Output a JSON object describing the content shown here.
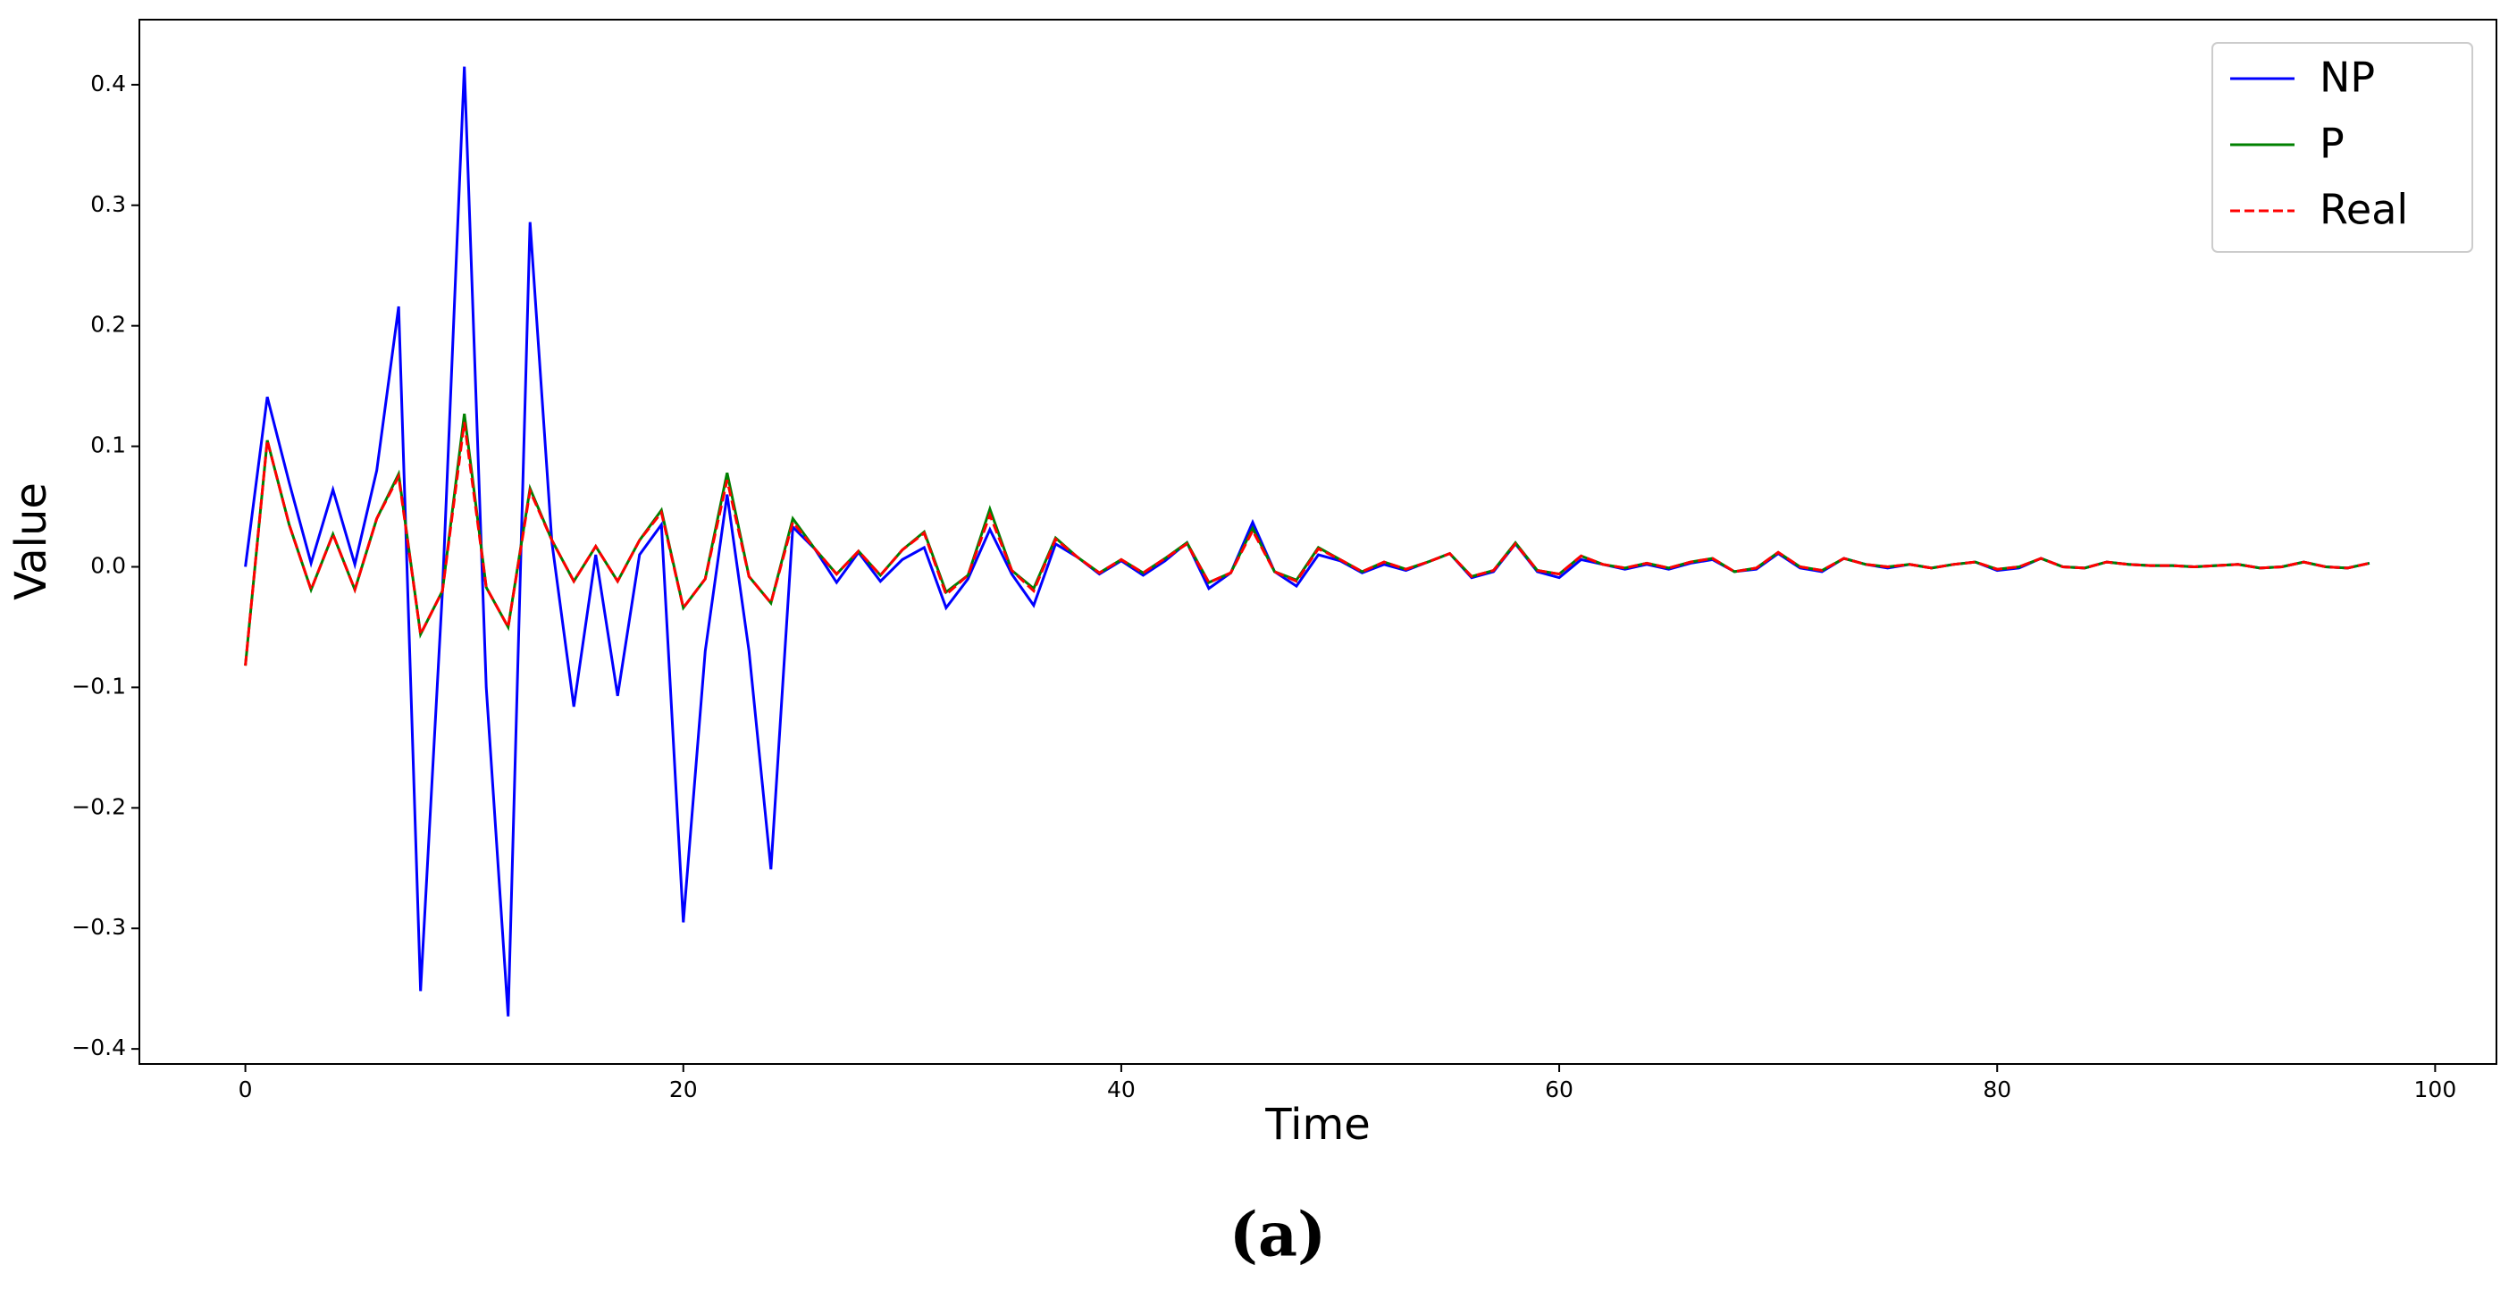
{
  "chart_data": {
    "type": "line",
    "xlabel": "Time",
    "ylabel": "Value",
    "caption": "(a)",
    "legend": "upper right",
    "xlim": [
      -4.84,
      102.8
    ],
    "ylim": [
      -0.4125,
      0.454
    ],
    "xticks": [
      0,
      20,
      40,
      60,
      80,
      100
    ],
    "yticks": [
      {
        "value": -0.4,
        "label": "−0.4"
      },
      {
        "value": -0.3,
        "label": "−0.3"
      },
      {
        "value": -0.2,
        "label": "−0.2"
      },
      {
        "value": -0.1,
        "label": "−0.1"
      },
      {
        "value": 0,
        "label": "0.0"
      },
      0.1,
      0.2,
      0.3,
      0.4
    ],
    "x": [
      0,
      1,
      2,
      3,
      4,
      5,
      6,
      7,
      8,
      9,
      10,
      11,
      12,
      13,
      14,
      15,
      16,
      17,
      18,
      19,
      20,
      21,
      22,
      23,
      24,
      25,
      26,
      27,
      28,
      29,
      30,
      31,
      32,
      33,
      34,
      35,
      36,
      37,
      38,
      39,
      40,
      41,
      42,
      43,
      44,
      45,
      46,
      47,
      48,
      49,
      50,
      51,
      52,
      53,
      54,
      55,
      56,
      57,
      58,
      59,
      60,
      61,
      62,
      63,
      64,
      65,
      66,
      67,
      68,
      69,
      70,
      71,
      72,
      73,
      74,
      75,
      76,
      77,
      78,
      79,
      80,
      81,
      82,
      83,
      84,
      85,
      86,
      87,
      88,
      89,
      90,
      91,
      92,
      93,
      94,
      95,
      96,
      97
    ],
    "series": [
      {
        "name": "NP",
        "color": "#0000ff",
        "linestyle": "solid",
        "values": [
          0.0,
          0.141,
          0.07,
          0.003,
          0.064,
          0.002,
          0.08,
          0.216,
          -0.352,
          -0.02,
          0.415,
          -0.1,
          -0.373,
          0.286,
          0.02,
          -0.116,
          0.01,
          -0.107,
          0.01,
          0.035,
          -0.295,
          -0.07,
          0.06,
          -0.07,
          -0.251,
          0.033,
          0.015,
          -0.013,
          0.012,
          -0.012,
          0.006,
          0.016,
          -0.034,
          -0.01,
          0.031,
          -0.006,
          -0.032,
          0.019,
          0.008,
          -0.006,
          0.005,
          -0.007,
          0.005,
          0.02,
          -0.018,
          -0.005,
          0.037,
          -0.004,
          -0.016,
          0.01,
          0.005,
          -0.005,
          0.002,
          -0.003,
          0.004,
          0.011,
          -0.009,
          -0.004,
          0.019,
          -0.004,
          -0.009,
          0.006,
          0.002,
          -0.002,
          0.002,
          -0.002,
          0.003,
          0.006,
          -0.004,
          -0.002,
          0.011,
          -0.001,
          -0.004,
          0.007,
          0.002,
          -0.001,
          0.002,
          -0.001,
          0.002,
          0.004,
          -0.003,
          -0.001,
          0.007,
          0.0,
          -0.001,
          0.004,
          0.002,
          0.001,
          0.001,
          0.0,
          0.001,
          0.002,
          -0.001,
          0.0,
          0.004,
          0.0,
          -0.001,
          0.003
        ]
      },
      {
        "name": "P",
        "color": "#008000",
        "linestyle": "solid",
        "values": [
          -0.082,
          0.105,
          0.035,
          -0.019,
          0.027,
          -0.019,
          0.04,
          0.077,
          -0.056,
          -0.02,
          0.127,
          -0.017,
          -0.05,
          0.065,
          0.022,
          -0.012,
          0.017,
          -0.012,
          0.022,
          0.047,
          -0.034,
          -0.01,
          0.078,
          -0.008,
          -0.03,
          0.04,
          0.015,
          -0.006,
          0.013,
          -0.007,
          0.014,
          0.029,
          -0.021,
          -0.007,
          0.048,
          -0.003,
          -0.018,
          0.024,
          0.008,
          -0.005,
          0.006,
          -0.005,
          0.007,
          0.02,
          -0.013,
          -0.005,
          0.032,
          -0.004,
          -0.011,
          0.016,
          0.006,
          -0.004,
          0.004,
          -0.002,
          0.004,
          0.011,
          -0.008,
          -0.003,
          0.02,
          -0.003,
          -0.006,
          0.009,
          0.002,
          -0.001,
          0.003,
          -0.001,
          0.004,
          0.007,
          -0.004,
          -0.001,
          0.012,
          0.0,
          -0.003,
          0.007,
          0.002,
          0.0,
          0.002,
          -0.001,
          0.002,
          0.004,
          -0.002,
          0.0,
          0.007,
          0.0,
          -0.001,
          0.004,
          0.002,
          0.001,
          0.001,
          0.0,
          0.001,
          0.002,
          -0.001,
          0.0,
          0.004,
          0.0,
          -0.001,
          0.003
        ]
      },
      {
        "name": "Real",
        "color": "#ff0000",
        "linestyle": "dashed",
        "values": [
          -0.082,
          0.105,
          0.035,
          -0.019,
          0.027,
          -0.019,
          0.04,
          0.075,
          -0.056,
          -0.02,
          0.12,
          -0.017,
          -0.05,
          0.063,
          0.022,
          -0.012,
          0.017,
          -0.012,
          0.022,
          0.045,
          -0.034,
          -0.01,
          0.072,
          -0.008,
          -0.03,
          0.037,
          0.015,
          -0.006,
          0.013,
          -0.007,
          0.014,
          0.028,
          -0.023,
          -0.007,
          0.043,
          -0.003,
          -0.02,
          0.023,
          0.008,
          -0.005,
          0.006,
          -0.005,
          0.007,
          0.019,
          -0.013,
          -0.005,
          0.03,
          -0.004,
          -0.012,
          0.015,
          0.006,
          -0.004,
          0.004,
          -0.002,
          0.004,
          0.011,
          -0.008,
          -0.003,
          0.019,
          -0.003,
          -0.006,
          0.009,
          0.002,
          -0.001,
          0.003,
          -0.001,
          0.004,
          0.007,
          -0.004,
          -0.001,
          0.012,
          0.0,
          -0.003,
          0.007,
          0.002,
          0.0,
          0.002,
          -0.001,
          0.002,
          0.004,
          -0.002,
          0.0,
          0.007,
          0.0,
          -0.001,
          0.004,
          0.002,
          0.001,
          0.001,
          0.0,
          0.001,
          0.002,
          -0.001,
          0.0,
          0.004,
          0.0,
          -0.001,
          0.003
        ]
      }
    ]
  }
}
